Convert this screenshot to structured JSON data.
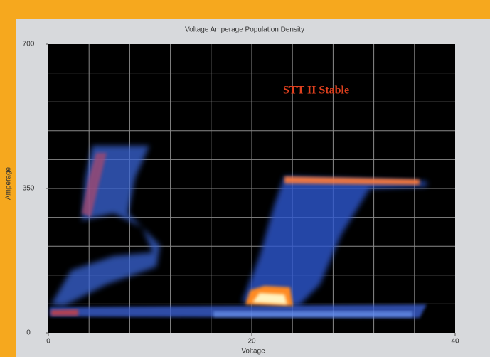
{
  "chart_data": {
    "type": "density",
    "title": "Voltage Amperage Population Density",
    "annotation": "STT II Stable",
    "x_label": "Voltage",
    "y_label": "Amperage",
    "xlim": [
      0,
      40
    ],
    "xticks": [
      0,
      20,
      40
    ],
    "ylim": [
      0,
      700
    ],
    "yticks": [
      0,
      350,
      700
    ],
    "xgrid": [
      4,
      8,
      12,
      16,
      20,
      24,
      28,
      32,
      36
    ],
    "ygrid": [
      70,
      140,
      210,
      280,
      350,
      420,
      490,
      560,
      630
    ],
    "grid": true
  }
}
